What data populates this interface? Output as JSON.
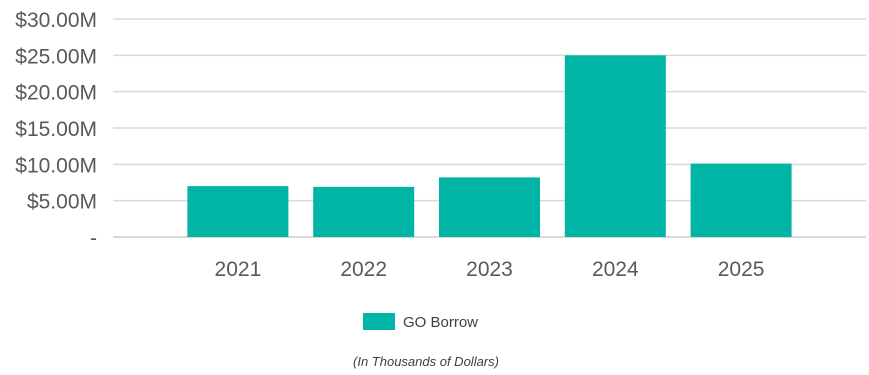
{
  "chart_data": {
    "type": "bar",
    "categories": [
      "2021",
      "2022",
      "2023",
      "2024",
      "2025"
    ],
    "series": [
      {
        "name": "GO Borrow",
        "values": [
          7.0,
          6.9,
          8.2,
          25.0,
          10.1
        ],
        "color": "#00B5A6"
      }
    ],
    "ylim": [
      0,
      30
    ],
    "ytick_values": [
      0,
      5,
      10,
      15,
      20,
      25,
      30
    ],
    "ytick_labels": [
      "-",
      "$5.00M",
      "$10.00M",
      "$15.00M",
      "$20.00M",
      "$25.00M",
      "$30.00M"
    ],
    "grid": true,
    "legend_position": "bottom",
    "note": "(In Thousands of Dollars)"
  },
  "colors": {
    "grid": "#d9d9d9",
    "tick_text": "#595959"
  }
}
